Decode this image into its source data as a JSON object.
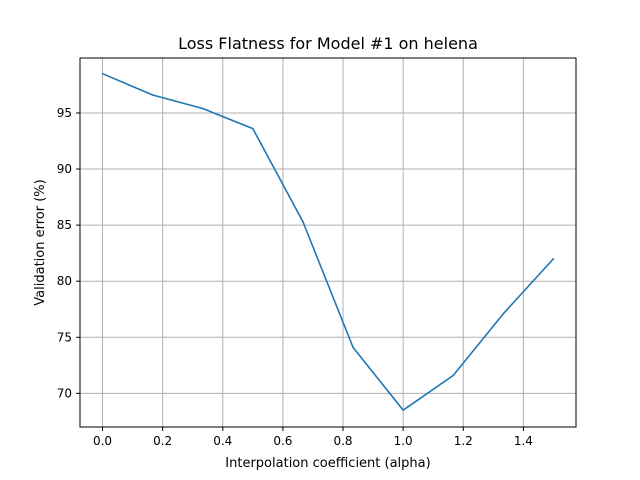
{
  "chart_data": {
    "type": "line",
    "title": "Loss Flatness for Model #1 on helena",
    "xlabel": "Interpolation coefficient (alpha)",
    "ylabel": "Validation error (%)",
    "xlim": [
      -0.075,
      1.575
    ],
    "ylim": [
      67.0,
      99.9
    ],
    "x_ticks": [
      0.0,
      0.2,
      0.4,
      0.6,
      0.8,
      1.0,
      1.2,
      1.4
    ],
    "x_tick_labels": [
      "0.0",
      "0.2",
      "0.4",
      "0.6",
      "0.8",
      "1.0",
      "1.2",
      "1.4"
    ],
    "y_ticks": [
      70,
      75,
      80,
      85,
      90,
      95
    ],
    "y_tick_labels": [
      "70",
      "75",
      "80",
      "85",
      "90",
      "95"
    ],
    "grid": true,
    "series": [
      {
        "color": "#1f77b4",
        "x": [
          0.0,
          0.1667,
          0.3333,
          0.5,
          0.6667,
          0.8333,
          1.0,
          1.1667,
          1.3333,
          1.5
        ],
        "y": [
          98.5,
          96.6,
          95.4,
          93.6,
          85.3,
          74.1,
          68.5,
          71.6,
          77.1,
          82.0
        ]
      }
    ]
  }
}
